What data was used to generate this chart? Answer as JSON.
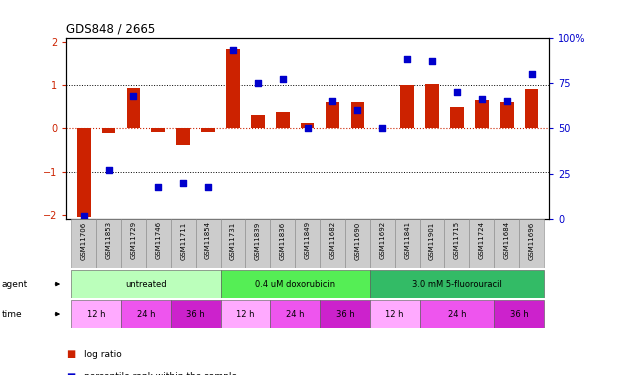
{
  "title": "GDS848 / 2665",
  "samples": [
    "GSM11706",
    "GSM11853",
    "GSM11729",
    "GSM11746",
    "GSM11711",
    "GSM11854",
    "GSM11731",
    "GSM11839",
    "GSM11836",
    "GSM11849",
    "GSM11682",
    "GSM11690",
    "GSM11692",
    "GSM11841",
    "GSM11901",
    "GSM11715",
    "GSM11724",
    "GSM11684",
    "GSM11696"
  ],
  "log_ratio": [
    -2.05,
    -0.1,
    0.93,
    -0.08,
    -0.38,
    -0.08,
    1.83,
    0.32,
    0.37,
    0.12,
    0.62,
    0.6,
    0.0,
    1.0,
    1.02,
    0.5,
    0.65,
    0.6,
    0.9
  ],
  "percentile_rank": [
    2,
    27,
    68,
    18,
    20,
    18,
    93,
    75,
    77,
    50,
    65,
    60,
    50,
    88,
    87,
    70,
    66,
    65,
    80
  ],
  "agent_groups": [
    {
      "label": "untreated",
      "start": 0,
      "end": 5,
      "color": "#bbffbb"
    },
    {
      "label": "0.4 uM doxorubicin",
      "start": 6,
      "end": 11,
      "color": "#55ee55"
    },
    {
      "label": "3.0 mM 5-fluorouracil",
      "start": 12,
      "end": 18,
      "color": "#33bb66"
    }
  ],
  "time_groups": [
    {
      "label": "12 h",
      "start": 0,
      "end": 1,
      "color": "#ffaaff"
    },
    {
      "label": "24 h",
      "start": 2,
      "end": 3,
      "color": "#ee55ee"
    },
    {
      "label": "36 h",
      "start": 4,
      "end": 5,
      "color": "#cc22cc"
    },
    {
      "label": "12 h",
      "start": 6,
      "end": 7,
      "color": "#ffaaff"
    },
    {
      "label": "24 h",
      "start": 8,
      "end": 9,
      "color": "#ee55ee"
    },
    {
      "label": "36 h",
      "start": 10,
      "end": 11,
      "color": "#cc22cc"
    },
    {
      "label": "12 h",
      "start": 12,
      "end": 13,
      "color": "#ffaaff"
    },
    {
      "label": "24 h",
      "start": 14,
      "end": 16,
      "color": "#ee55ee"
    },
    {
      "label": "36 h",
      "start": 17,
      "end": 18,
      "color": "#cc22cc"
    }
  ],
  "bar_color": "#cc2200",
  "dot_color": "#0000cc",
  "ylim_left": [
    -2.1,
    2.1
  ],
  "ylim_right": [
    0,
    100
  ],
  "yticks_left": [
    -2,
    -1,
    0,
    1,
    2
  ],
  "yticks_right": [
    0,
    25,
    50,
    75,
    100
  ],
  "background_color": "#ffffff"
}
